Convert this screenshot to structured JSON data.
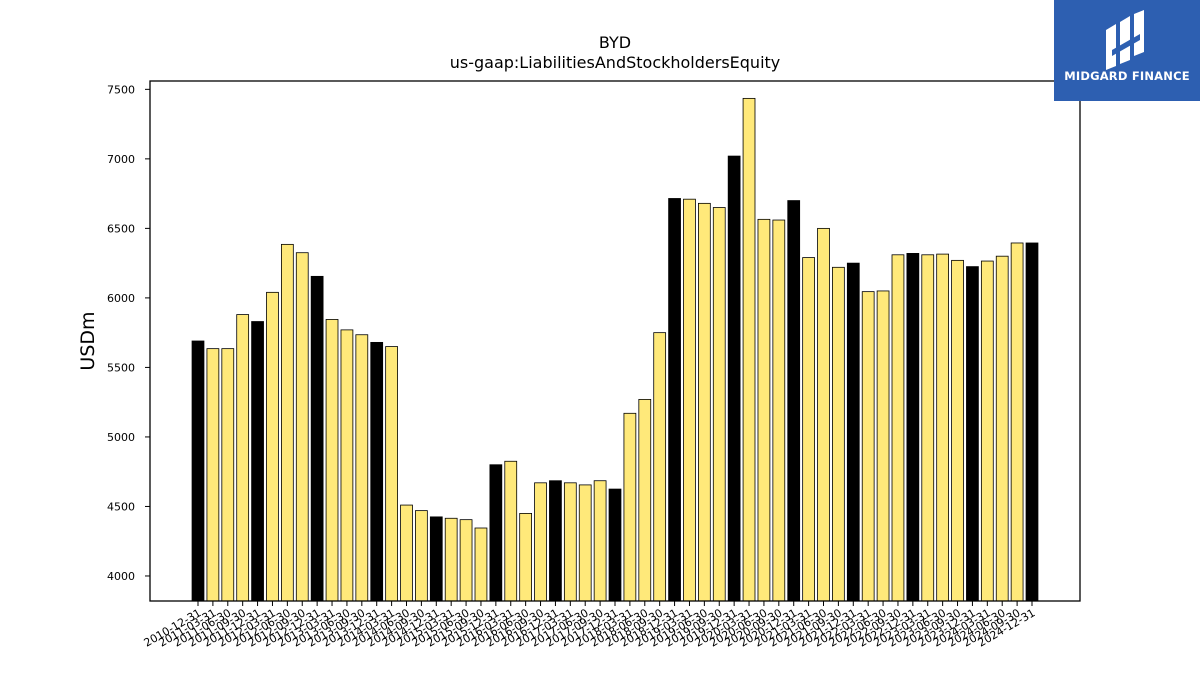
{
  "chart_data": {
    "type": "bar",
    "title": "BYD",
    "subtitle": "us-gaap:LiabilitiesAndStockholdersEquity",
    "xlabel": "",
    "ylabel": "USDm",
    "ylim": [
      3820,
      7560
    ],
    "yticks": [
      4000,
      4500,
      5000,
      5500,
      6000,
      6500,
      7000,
      7500
    ],
    "grid": false,
    "colors": {
      "year_end": "#000000",
      "quarter": "#ffe97a",
      "edge": "#000000"
    },
    "categories": [
      "2010-12-31",
      "2011-03-31",
      "2011-06-30",
      "2011-09-30",
      "2011-12-31",
      "2012-03-31",
      "2012-06-30",
      "2012-09-30",
      "2012-12-31",
      "2013-03-31",
      "2013-06-30",
      "2013-09-30",
      "2013-12-31",
      "2014-03-31",
      "2014-06-30",
      "2014-09-30",
      "2014-12-31",
      "2015-03-31",
      "2015-06-30",
      "2015-09-30",
      "2015-12-31",
      "2016-03-31",
      "2016-06-30",
      "2016-09-30",
      "2016-12-31",
      "2017-03-31",
      "2017-06-30",
      "2017-09-30",
      "2017-12-31",
      "2018-03-31",
      "2018-06-30",
      "2018-09-30",
      "2018-12-31",
      "2019-03-31",
      "2019-06-30",
      "2019-09-30",
      "2019-12-31",
      "2020-03-31",
      "2020-06-30",
      "2020-09-30",
      "2020-12-31",
      "2021-03-31",
      "2021-06-30",
      "2021-09-30",
      "2021-12-31",
      "2022-03-31",
      "2022-06-30",
      "2022-09-30",
      "2022-12-31",
      "2023-03-31",
      "2023-06-30",
      "2023-09-30",
      "2023-12-31",
      "2024-03-31",
      "2024-06-30",
      "2024-09-30",
      "2024-12-31"
    ],
    "values": [
      5690,
      5635,
      5635,
      5880,
      5830,
      6040,
      6385,
      6325,
      6155,
      5845,
      5770,
      5735,
      5680,
      5650,
      4510,
      4470,
      4425,
      4415,
      4405,
      4345,
      4800,
      4825,
      4450,
      4670,
      4685,
      4670,
      4655,
      4685,
      4625,
      5170,
      5270,
      5750,
      6715,
      6710,
      6680,
      6650,
      7020,
      7435,
      6565,
      6560,
      6700,
      6290,
      6500,
      6220,
      6250,
      6045,
      6050,
      6310,
      6320,
      6310,
      6315,
      6270,
      6225,
      6265,
      6300,
      6395,
      6395
    ],
    "year_end": [
      true,
      false,
      false,
      false,
      true,
      false,
      false,
      false,
      true,
      false,
      false,
      false,
      true,
      false,
      false,
      false,
      true,
      false,
      false,
      false,
      true,
      false,
      false,
      false,
      true,
      false,
      false,
      false,
      true,
      false,
      false,
      false,
      true,
      false,
      false,
      false,
      true,
      false,
      false,
      false,
      true,
      false,
      false,
      false,
      true,
      false,
      false,
      false,
      true,
      false,
      false,
      false,
      true,
      false,
      false,
      false,
      true
    ]
  },
  "logo": {
    "text": "MIDGARD FINANCE",
    "icon": "midgard-logo-icon"
  }
}
